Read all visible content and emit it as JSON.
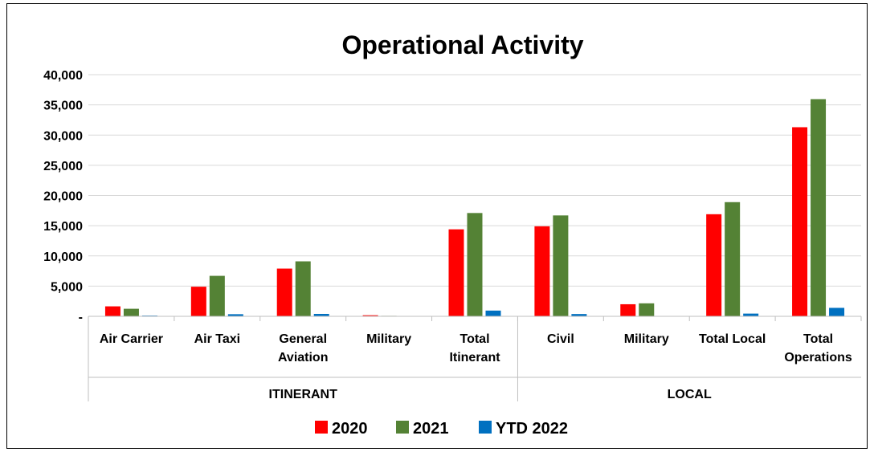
{
  "chart_data": {
    "type": "bar",
    "title": "Operational Activity",
    "categories": [
      {
        "label": [
          "Air Carrier"
        ],
        "group": "ITINERANT"
      },
      {
        "label": [
          "Air Taxi"
        ],
        "group": "ITINERANT"
      },
      {
        "label": [
          "General",
          "Aviation"
        ],
        "group": "ITINERANT"
      },
      {
        "label": [
          "Military"
        ],
        "group": "ITINERANT"
      },
      {
        "label": [
          "Total",
          "Itinerant"
        ],
        "group": "ITINERANT"
      },
      {
        "label": [
          "Civil"
        ],
        "group": "LOCAL"
      },
      {
        "label": [
          "Military"
        ],
        "group": "LOCAL"
      },
      {
        "label": [
          "Total Local"
        ],
        "group": "LOCAL"
      },
      {
        "label": [
          "Total",
          "Operations"
        ],
        "group": "LOCAL"
      }
    ],
    "groups": [
      "ITINERANT",
      "LOCAL"
    ],
    "series": [
      {
        "name": "2020",
        "color": "#ff0000",
        "values": [
          1650,
          4900,
          7900,
          180,
          14400,
          14900,
          2000,
          16900,
          31300
        ]
      },
      {
        "name": "2021",
        "color": "#548235",
        "values": [
          1250,
          6700,
          9100,
          80,
          17100,
          16700,
          2150,
          18900,
          35950
        ]
      },
      {
        "name": "YTD 2022",
        "color": "#0070c0",
        "values": [
          120,
          350,
          400,
          10,
          950,
          380,
          60,
          450,
          1400
        ]
      }
    ],
    "ylim": [
      0,
      40000
    ],
    "yticks": [
      0,
      5000,
      10000,
      15000,
      20000,
      25000,
      30000,
      35000,
      40000
    ],
    "ytick_labels": [
      "-",
      "5,000",
      "10,000",
      "15,000",
      "20,000",
      "25,000",
      "30,000",
      "35,000",
      "40,000"
    ],
    "grid": true,
    "legend_position": "bottom"
  }
}
